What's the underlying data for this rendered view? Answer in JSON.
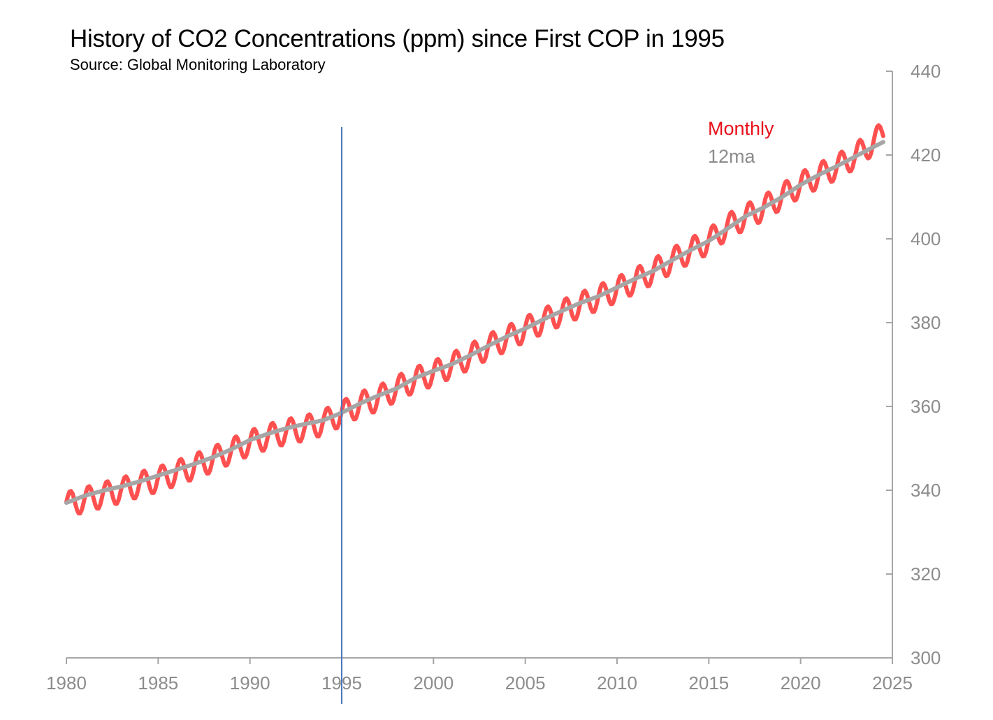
{
  "chart_data": {
    "type": "line",
    "title": "History of CO2 Concentrations (ppm) since First COP in 1995",
    "subtitle": "Source: Global Monitoring Laboratory",
    "xlabel": "",
    "ylabel": "",
    "xlim": [
      1980,
      2025
    ],
    "ylim": [
      300,
      440
    ],
    "x_ticks": [
      1980,
      1985,
      1990,
      1995,
      2000,
      2005,
      2010,
      2015,
      2020,
      2025
    ],
    "y_ticks": [
      300,
      320,
      340,
      360,
      380,
      400,
      420,
      440
    ],
    "y_axis_position": "right",
    "grid": false,
    "legend_position": "top-right",
    "reference_line": {
      "x": 1995
    },
    "series": [
      {
        "name": "Monthly",
        "color": "#ff5050",
        "note_points": "monthly values oscillate seasonally about the 12ma with amplitude ~3 ppm",
        "x": [
          1980,
          1981,
          1982,
          1983,
          1984,
          1985,
          1986,
          1987,
          1988,
          1989,
          1990,
          1991,
          1992,
          1993,
          1994,
          1995,
          1996,
          1997,
          1998,
          1999,
          2000,
          2001,
          2002,
          2003,
          2004,
          2005,
          2006,
          2007,
          2008,
          2009,
          2010,
          2011,
          2012,
          2013,
          2014,
          2015,
          2016,
          2017,
          2018,
          2019,
          2020,
          2021,
          2022,
          2023,
          2024,
          2024.5
        ],
        "y": [
          338.0,
          339.1,
          340.3,
          341.4,
          342.8,
          344.0,
          345.5,
          347.1,
          348.8,
          350.8,
          352.7,
          354.2,
          355.4,
          356.2,
          357.6,
          359.7,
          361.9,
          363.3,
          365.7,
          367.8,
          369.3,
          371.2,
          373.3,
          375.7,
          377.6,
          379.8,
          381.8,
          383.8,
          385.6,
          387.4,
          389.3,
          391.4,
          393.7,
          396.2,
          398.6,
          400.8,
          404.3,
          406.6,
          408.8,
          411.6,
          414.3,
          416.5,
          418.6,
          421.2,
          424.6,
          426.5
        ]
      },
      {
        "name": "12ma",
        "color": "#a6a6a6",
        "x": [
          1980,
          1981,
          1982,
          1983,
          1984,
          1985,
          1986,
          1987,
          1988,
          1989,
          1990,
          1991,
          1992,
          1993,
          1994,
          1995,
          1996,
          1997,
          1998,
          1999,
          2000,
          2001,
          2002,
          2003,
          2004,
          2005,
          2006,
          2007,
          2008,
          2009,
          2010,
          2011,
          2012,
          2013,
          2014,
          2015,
          2016,
          2017,
          2018,
          2019,
          2020,
          2021,
          2022,
          2023,
          2024,
          2024.5
        ],
        "y": [
          337.0,
          338.7,
          339.9,
          340.9,
          342.1,
          343.5,
          344.9,
          346.3,
          347.9,
          349.8,
          352.0,
          353.5,
          354.8,
          355.8,
          356.7,
          358.5,
          360.7,
          362.6,
          364.3,
          366.8,
          368.5,
          370.1,
          372.2,
          374.5,
          376.7,
          378.6,
          380.8,
          382.8,
          384.7,
          386.3,
          388.4,
          390.5,
          392.4,
          394.9,
          397.3,
          399.5,
          402.4,
          405.4,
          407.5,
          410.0,
          412.9,
          415.3,
          417.4,
          419.7,
          422.0,
          423.1
        ]
      }
    ]
  }
}
